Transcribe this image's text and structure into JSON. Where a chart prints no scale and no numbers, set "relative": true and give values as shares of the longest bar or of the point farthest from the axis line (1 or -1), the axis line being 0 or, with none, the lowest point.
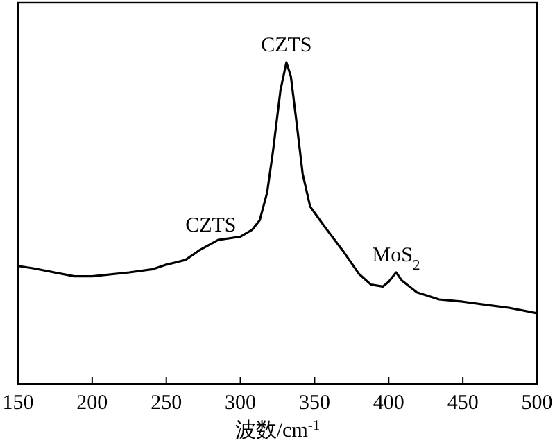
{
  "chart_data": {
    "type": "line",
    "relative": true,
    "xlabel": "波数/cm$^{-1}$",
    "xlim": [
      150,
      500
    ],
    "xticks": [
      150,
      200,
      250,
      300,
      350,
      400,
      450,
      500
    ],
    "tick_labels": "x",
    "grid": false,
    "line_style": "solid",
    "series": [
      {
        "color": "#000000",
        "x": [
          150,
          160,
          188,
          200,
          225,
          241,
          250,
          263,
          272,
          285,
          300,
          308,
          313,
          318,
          322,
          327,
          331,
          334,
          337.5,
          342,
          347,
          356,
          369,
          380,
          388,
          396,
          400,
          405,
          409,
          419,
          434,
          450,
          466,
          481,
          500
        ],
        "values": [
          0.367,
          0.36,
          0.335,
          0.335,
          0.347,
          0.357,
          0.371,
          0.386,
          0.415,
          0.448,
          0.458,
          0.48,
          0.509,
          0.595,
          0.725,
          0.913,
          1,
          0.957,
          0.827,
          0.653,
          0.552,
          0.494,
          0.415,
          0.342,
          0.309,
          0.303,
          0.318,
          0.347,
          0.321,
          0.285,
          0.263,
          0.256,
          0.246,
          0.237,
          0.22
        ]
      }
    ],
    "annotations": [
      {
        "text": "CZTS",
        "x": 331,
        "y": 1
      },
      {
        "text": "CZTS",
        "x": 280,
        "y": 0.44
      },
      {
        "text": "MoS$_{2}$",
        "x": 405,
        "y": 0.347
      }
    ]
  }
}
